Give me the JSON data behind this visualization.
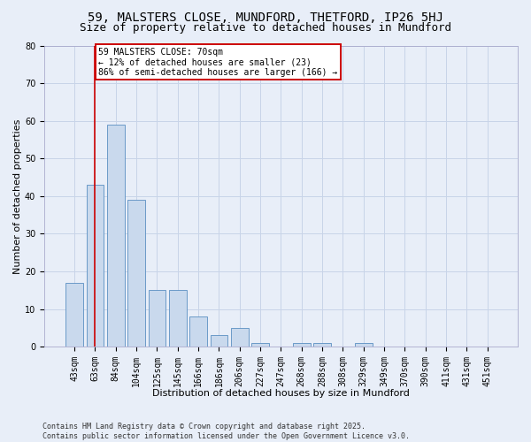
{
  "title1": "59, MALSTERS CLOSE, MUNDFORD, THETFORD, IP26 5HJ",
  "title2": "Size of property relative to detached houses in Mundford",
  "xlabel": "Distribution of detached houses by size in Mundford",
  "ylabel": "Number of detached properties",
  "categories": [
    "43sqm",
    "63sqm",
    "84sqm",
    "104sqm",
    "125sqm",
    "145sqm",
    "166sqm",
    "186sqm",
    "206sqm",
    "227sqm",
    "247sqm",
    "268sqm",
    "288sqm",
    "308sqm",
    "329sqm",
    "349sqm",
    "370sqm",
    "390sqm",
    "411sqm",
    "431sqm",
    "451sqm"
  ],
  "values": [
    17,
    43,
    59,
    39,
    15,
    15,
    8,
    3,
    5,
    1,
    0,
    1,
    1,
    0,
    1,
    0,
    0,
    0,
    0,
    0,
    0
  ],
  "bar_color": "#c9d9ed",
  "bar_edge_color": "#5a8fc2",
  "vline_x": 1,
  "vline_color": "#cc0000",
  "annotation_text": "59 MALSTERS CLOSE: 70sqm\n← 12% of detached houses are smaller (23)\n86% of semi-detached houses are larger (166) →",
  "annotation_box_color": "#ffffff",
  "annotation_box_edge": "#cc0000",
  "ylim": [
    0,
    80
  ],
  "yticks": [
    0,
    10,
    20,
    30,
    40,
    50,
    60,
    70,
    80
  ],
  "grid_color": "#c8d4e8",
  "bg_color": "#e8eef8",
  "footer": "Contains HM Land Registry data © Crown copyright and database right 2025.\nContains public sector information licensed under the Open Government Licence v3.0.",
  "title_fontsize": 10,
  "subtitle_fontsize": 9,
  "axis_label_fontsize": 8,
  "tick_fontsize": 7,
  "footer_fontsize": 6
}
